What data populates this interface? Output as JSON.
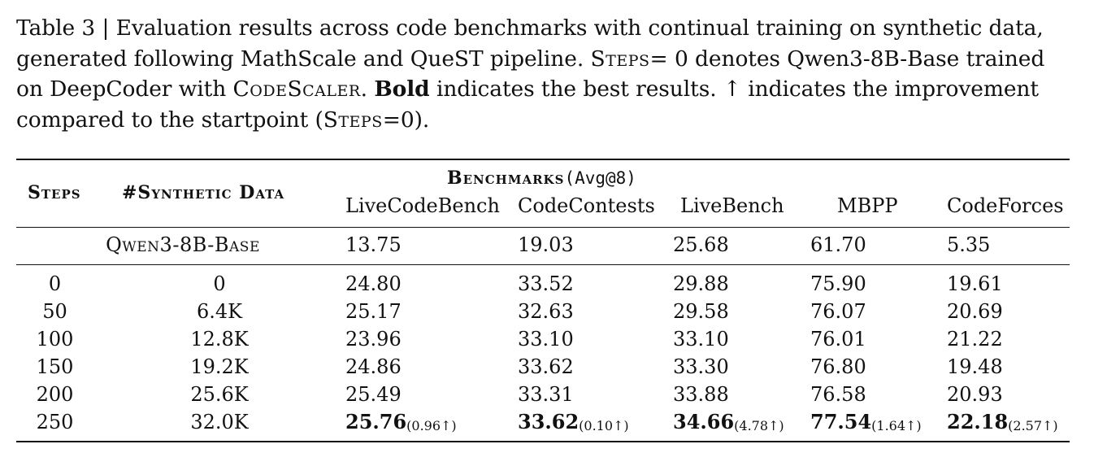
{
  "caption": {
    "line1": "Table 3 | Evaluation results across code benchmarks with continual training on synthetic data,",
    "line2_a": "generated following MathScale and QueST pipeline.",
    "line2_sc": "Steps",
    "line2_b": "= 0 denotes Qwen3-8B-Base trained",
    "line3_a": "on DeepCoder with",
    "line3_sc": "CodeScaler",
    "line3_b": ".",
    "line3_bold": "Bold",
    "line3_c": "indicates the best results. ↑ indicates the improvement",
    "line4_a": "compared to the startpoint (",
    "line4_sc": "Steps",
    "line4_b": "=0)."
  },
  "table": {
    "header": {
      "steps": "Steps",
      "synthetic": "#Synthetic Data",
      "benchmarks": "Benchmarks",
      "avg": "(Avg@8)",
      "columns": [
        "LiveCodeBench",
        "CodeContests",
        "LiveBench",
        "MBPP",
        "CodeForces"
      ]
    },
    "base": {
      "label": "Qwen3-8B-Base",
      "values": [
        "13.75",
        "19.03",
        "25.68",
        "61.70",
        "5.35"
      ]
    },
    "rows": [
      {
        "steps": "0",
        "data": "0",
        "values": [
          "24.80",
          "33.52",
          "29.88",
          "75.90",
          "19.61"
        ]
      },
      {
        "steps": "50",
        "data": "6.4K",
        "values": [
          "25.17",
          "32.63",
          "29.58",
          "76.07",
          "20.69"
        ]
      },
      {
        "steps": "100",
        "data": "12.8K",
        "values": [
          "23.96",
          "33.10",
          "33.10",
          "76.01",
          "21.22"
        ]
      },
      {
        "steps": "150",
        "data": "19.2K",
        "values": [
          "24.86",
          "33.62",
          "33.30",
          "76.80",
          "19.48"
        ]
      },
      {
        "steps": "200",
        "data": "25.6K",
        "values": [
          "25.49",
          "33.31",
          "33.88",
          "76.58",
          "20.93"
        ]
      }
    ],
    "last": {
      "steps": "250",
      "data": "32.0K",
      "values": [
        "25.76",
        "33.62",
        "34.66",
        "77.54",
        "22.18"
      ],
      "deltas": [
        "(0.96↑)",
        "(0.10↑)",
        "(4.78↑)",
        "(1.64↑)",
        "(2.57↑)"
      ]
    }
  }
}
